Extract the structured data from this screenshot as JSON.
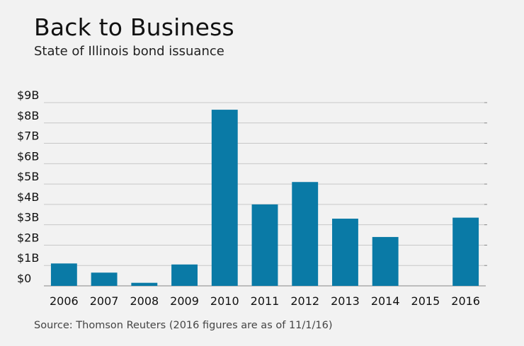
{
  "header": {
    "title": "Back to Business",
    "subtitle": "State of Illinois bond issuance"
  },
  "footer": {
    "source": "Source: Thomson Reuters (2016 figures are as of 11/1/16)"
  },
  "colors": {
    "bar": "#0a7aa6",
    "grid": "#c8c8c8",
    "axis": "#888888",
    "background": "#f2f2f2"
  },
  "chart_data": {
    "type": "bar",
    "title": "Back to Business",
    "subtitle": "State of Illinois bond issuance",
    "xlabel": "",
    "ylabel": "",
    "categories": [
      "2006",
      "2007",
      "2008",
      "2009",
      "2010",
      "2011",
      "2012",
      "2013",
      "2014",
      "2015",
      "2016"
    ],
    "values": [
      1.1,
      0.65,
      0.15,
      1.05,
      8.65,
      4.0,
      5.1,
      3.3,
      2.4,
      0,
      3.35
    ],
    "y_ticks": [
      0,
      1,
      2,
      3,
      4,
      5,
      6,
      7,
      8,
      9
    ],
    "y_tick_labels": [
      "$0",
      "$1B",
      "$2B",
      "$3B",
      "$4B",
      "$5B",
      "$6B",
      "$7B",
      "$8B",
      "$9B"
    ],
    "ylim": [
      0,
      9
    ],
    "grid": true,
    "legend": "none"
  }
}
